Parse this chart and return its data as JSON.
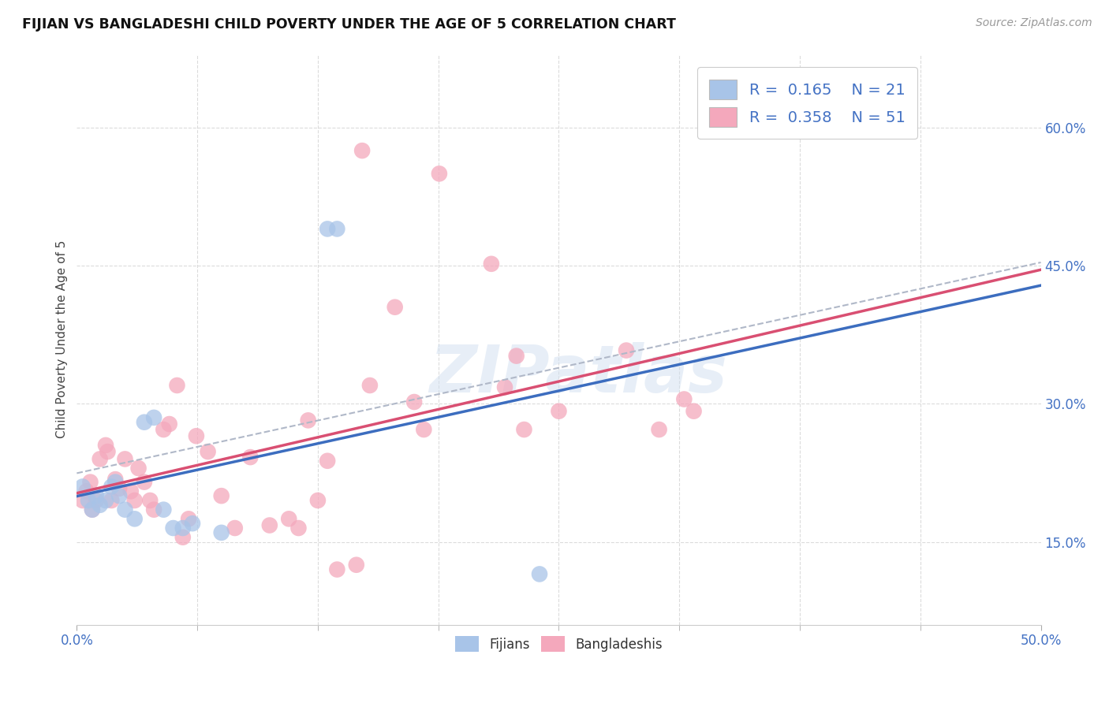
{
  "title": "FIJIAN VS BANGLADESHI CHILD POVERTY UNDER THE AGE OF 5 CORRELATION CHART",
  "source": "Source: ZipAtlas.com",
  "ylabel": "Child Poverty Under the Age of 5",
  "ytick_labels": [
    "15.0%",
    "30.0%",
    "45.0%",
    "60.0%"
  ],
  "ytick_values": [
    0.15,
    0.3,
    0.45,
    0.6
  ],
  "xlim": [
    0.0,
    0.5
  ],
  "ylim": [
    0.06,
    0.68
  ],
  "fijian_color": "#a8c4e8",
  "bangladeshi_color": "#f4a8bc",
  "fijian_line_color": "#3c6dbf",
  "bangladeshi_line_color": "#d94f72",
  "legend_text_color": "#4472c4",
  "R_fijian": "0.165",
  "N_fijian": "21",
  "R_bangladeshi": "0.358",
  "N_bangladeshi": "51",
  "fijian_x": [
    0.003,
    0.006,
    0.008,
    0.01,
    0.012,
    0.015,
    0.018,
    0.02,
    0.022,
    0.025,
    0.03,
    0.035,
    0.04,
    0.045,
    0.05,
    0.055,
    0.06,
    0.075,
    0.13,
    0.135,
    0.24
  ],
  "fijian_y": [
    0.21,
    0.195,
    0.185,
    0.2,
    0.19,
    0.195,
    0.21,
    0.215,
    0.2,
    0.185,
    0.175,
    0.28,
    0.285,
    0.185,
    0.165,
    0.165,
    0.17,
    0.16,
    0.49,
    0.49,
    0.115
  ],
  "bangladeshi_x": [
    0.003,
    0.005,
    0.007,
    0.008,
    0.01,
    0.012,
    0.015,
    0.016,
    0.018,
    0.02,
    0.022,
    0.025,
    0.028,
    0.03,
    0.032,
    0.035,
    0.038,
    0.04,
    0.045,
    0.048,
    0.052,
    0.055,
    0.058,
    0.062,
    0.068,
    0.075,
    0.082,
    0.09,
    0.1,
    0.11,
    0.115,
    0.12,
    0.125,
    0.13,
    0.135,
    0.145,
    0.148,
    0.152,
    0.165,
    0.175,
    0.18,
    0.188,
    0.215,
    0.222,
    0.228,
    0.232,
    0.25,
    0.285,
    0.302,
    0.315,
    0.32
  ],
  "bangladeshi_y": [
    0.195,
    0.205,
    0.215,
    0.185,
    0.195,
    0.24,
    0.255,
    0.248,
    0.195,
    0.218,
    0.208,
    0.24,
    0.205,
    0.195,
    0.23,
    0.215,
    0.195,
    0.185,
    0.272,
    0.278,
    0.32,
    0.155,
    0.175,
    0.265,
    0.248,
    0.2,
    0.165,
    0.242,
    0.168,
    0.175,
    0.165,
    0.282,
    0.195,
    0.238,
    0.12,
    0.125,
    0.575,
    0.32,
    0.405,
    0.302,
    0.272,
    0.55,
    0.452,
    0.318,
    0.352,
    0.272,
    0.292,
    0.358,
    0.272,
    0.305,
    0.292
  ],
  "watermark_text": "ZIPatlas",
  "background_color": "#ffffff",
  "grid_color": "#d8d8d8"
}
